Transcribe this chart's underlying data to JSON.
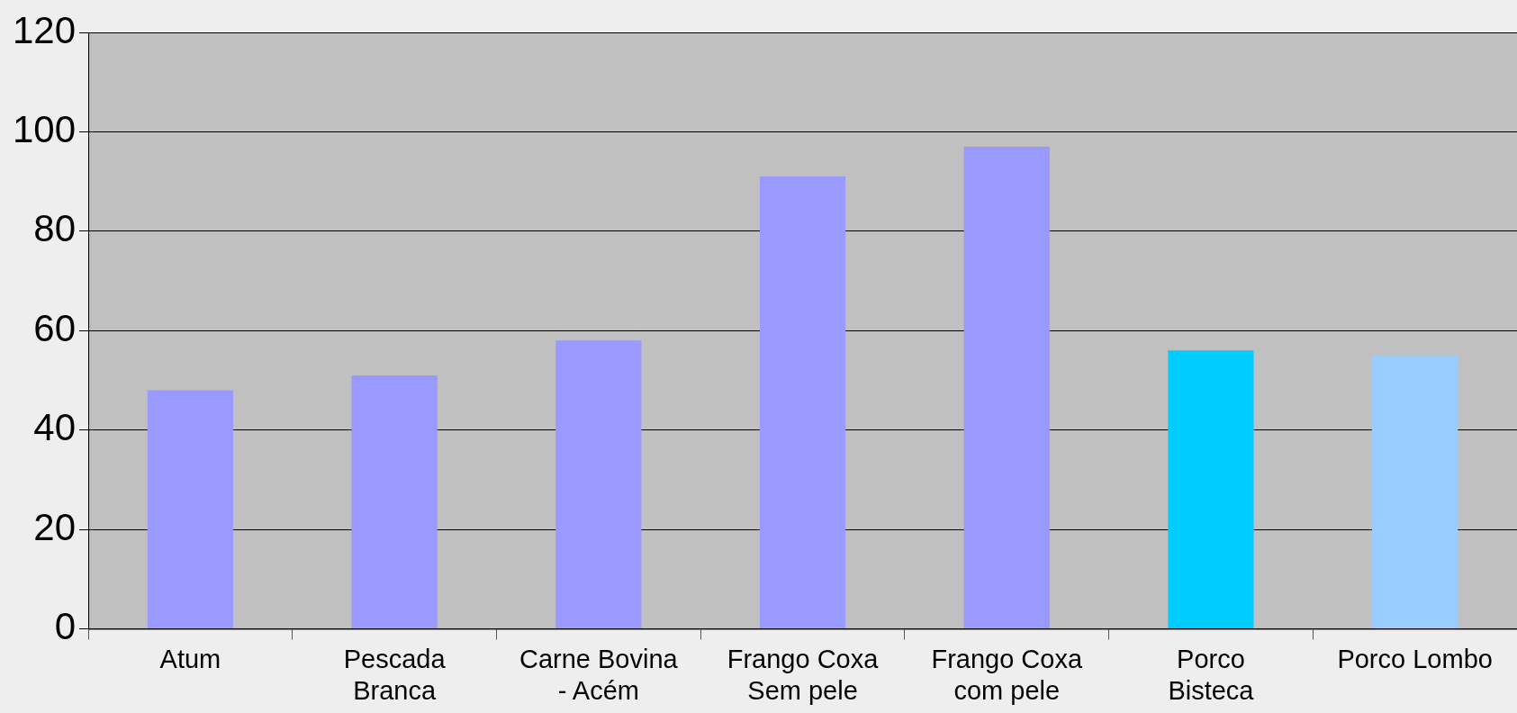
{
  "chart_data": {
    "type": "bar",
    "categories": [
      "Atum",
      "Pescada Branca",
      "Carne Bovina - Acém",
      "Frango Coxa Sem pele",
      "Frango Coxa com pele",
      "Porco Bisteca",
      "Porco Lombo"
    ],
    "values": [
      48,
      51,
      58,
      91,
      97,
      56,
      55
    ],
    "colors": [
      "#9999ff",
      "#9999ff",
      "#9999ff",
      "#9999ff",
      "#9999ff",
      "#00ccff",
      "#99ccff"
    ],
    "ylim": [
      0,
      120
    ],
    "yticks": [
      0,
      20,
      40,
      60,
      80,
      100,
      120
    ],
    "grid": "y",
    "legend": false
  }
}
